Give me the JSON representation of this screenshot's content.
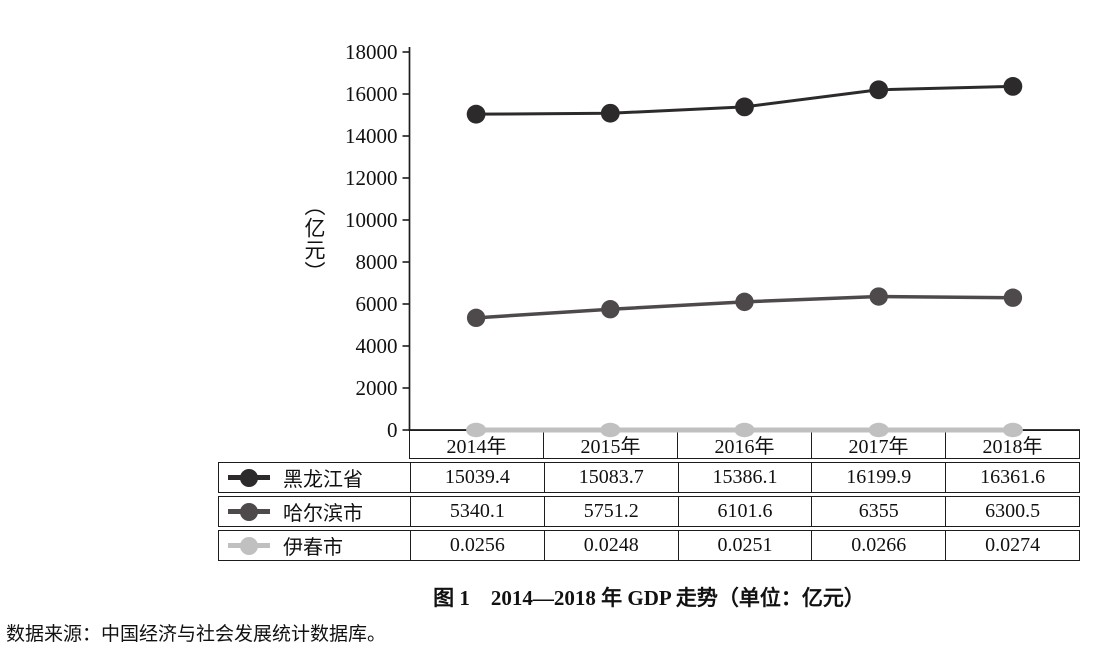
{
  "figure": {
    "caption": "图 1　2014—2018 年 GDP 走势（单位：亿元）",
    "source_note": "数据来源：中国经济与社会发展统计数据库。"
  },
  "axis": {
    "ylabel": "（亿元）",
    "yticks": [
      "18000",
      "16000",
      "14000",
      "12000",
      "10000",
      "8000",
      "6000",
      "4000",
      "2000",
      "0"
    ]
  },
  "chart_data": {
    "type": "line",
    "title": "图 1　2014—2018 年 GDP 走势（单位：亿元）",
    "ylabel": "亿元",
    "categories": [
      "2014年",
      "2015年",
      "2016年",
      "2017年",
      "2018年"
    ],
    "series": [
      {
        "name": "黑龙江省",
        "color": "#2d2a2b",
        "values": [
          15039.4,
          15083.7,
          15386.1,
          16199.9,
          16361.6
        ]
      },
      {
        "name": "哈尔滨市",
        "color": "#4e4a4c",
        "values": [
          5340.1,
          5751.2,
          6101.6,
          6355,
          6300.5
        ]
      },
      {
        "name": "伊春市",
        "color": "#c1c0c0",
        "values": [
          0.0256,
          0.0248,
          0.0251,
          0.0266,
          0.0274
        ]
      }
    ],
    "ylim": [
      0,
      18000
    ],
    "ytick_step": 2000,
    "grid": false,
    "legend_position": "table-rows-left"
  },
  "table": {
    "header": [
      "2014年",
      "2015年",
      "2016年",
      "2017年",
      "2018年"
    ],
    "rows": [
      {
        "label": "黑龙江省",
        "marker_color": "#2d2a2b",
        "values": [
          "15039.4",
          "15083.7",
          "15386.1",
          "16199.9",
          "16361.6"
        ]
      },
      {
        "label": "哈尔滨市",
        "marker_color": "#4e4a4c",
        "values": [
          "5340.1",
          "5751.2",
          "6101.6",
          "6355",
          "6300.5"
        ]
      },
      {
        "label": "伊春市",
        "marker_color": "#c1c0c0",
        "values": [
          "0.0256",
          "0.0248",
          "0.0251",
          "0.0266",
          "0.0274"
        ]
      }
    ]
  }
}
